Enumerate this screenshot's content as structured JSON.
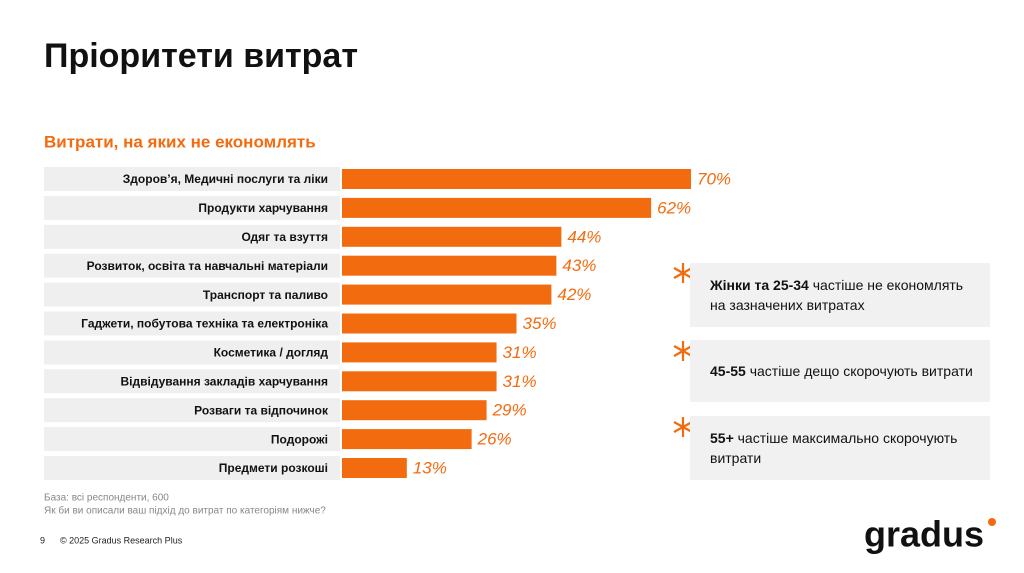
{
  "title": "Пріоритети витрат",
  "chart_data": {
    "type": "bar",
    "orientation": "horizontal",
    "title": "Витрати, на яких не економлять",
    "categories": [
      "Здоров’я, Медичні послуги та ліки",
      "Продукти харчування",
      "Одяг та взуття",
      "Розвиток, освіта та навчальні матеріали",
      "Транспорт та паливо",
      "Гаджети, побутова техніка та електроніка",
      "Косметика / догляд",
      "Відвідування закладів харчування",
      "Розваги та відпочинок",
      "Подорожі",
      "Предмети розкоші"
    ],
    "values": [
      70,
      62,
      44,
      43,
      42,
      35,
      31,
      31,
      29,
      26,
      13
    ],
    "value_labels": [
      "70%",
      "62%",
      "44%",
      "43%",
      "42%",
      "35%",
      "31%",
      "31%",
      "29%",
      "26%",
      "13%"
    ],
    "color": "#f36b0f"
  },
  "notes": [
    {
      "bold": "Жінки та 25-34",
      "text": " частіше не економлять на зазначених витратах"
    },
    {
      "bold": "45-55",
      "text": " частіше дещо скорочують витрати"
    },
    {
      "bold": "55+",
      "text": " частіше максимально скорочують витрати"
    }
  ],
  "footnotes": [
    "База: всі респонденти, 600",
    "Як би ви описали ваш підхід до витрат по категоріям нижче?"
  ],
  "footer": {
    "page": "9",
    "copyright": "© 2025 Gradus Research Plus"
  },
  "logo": "gradus"
}
